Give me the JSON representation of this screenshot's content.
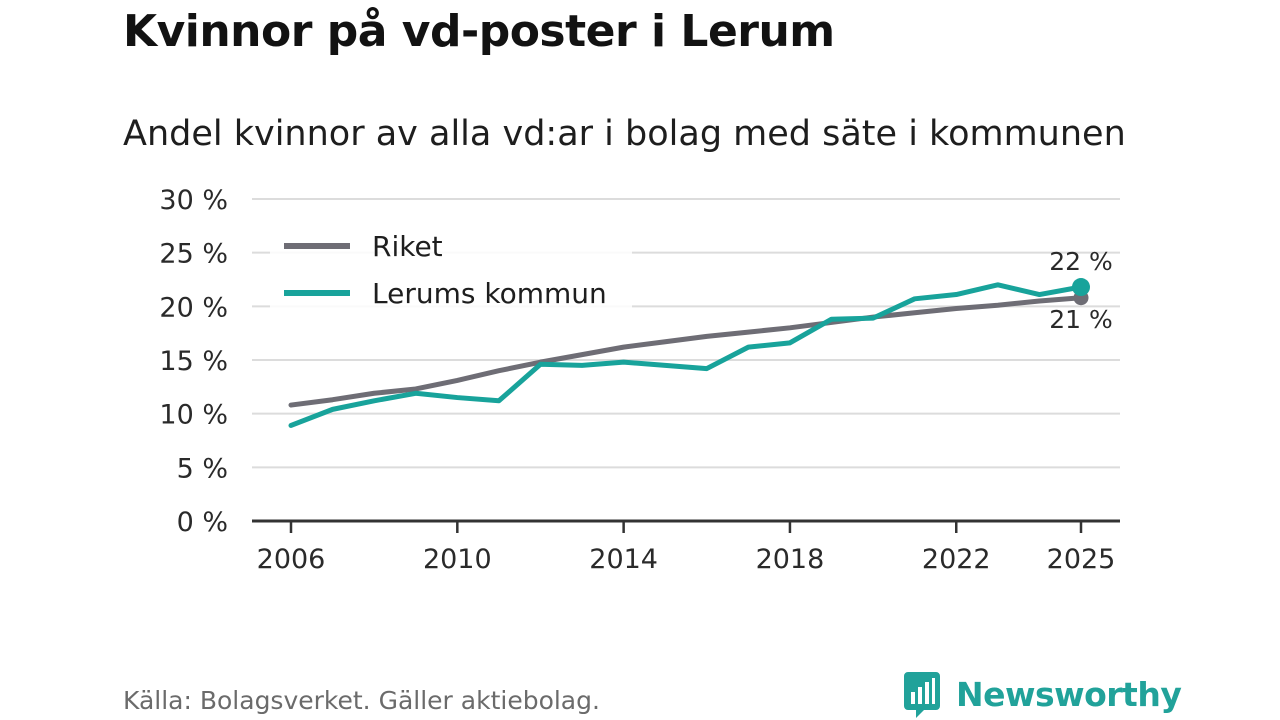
{
  "title": "Kvinnor på vd-poster i Lerum",
  "subtitle": "Andel kvinnor av alla vd:ar i bolag med säte i kommunen",
  "source": "Källa: Bolagsverket. Gäller aktiebolag.",
  "brand": "Newsworthy",
  "colors": {
    "riket": "#6e6d75",
    "lerum": "#18a39b",
    "grid": "#dcdcdc",
    "axis": "#333333",
    "text": "#2a2a2a"
  },
  "chart_data": {
    "type": "line",
    "title": "Kvinnor på vd-poster i Lerum",
    "subtitle": "Andel kvinnor av alla vd:ar i bolag med säte i kommunen",
    "xlabel": "",
    "ylabel": "",
    "x": [
      2006,
      2007,
      2008,
      2009,
      2010,
      2011,
      2012,
      2013,
      2014,
      2015,
      2016,
      2017,
      2018,
      2019,
      2020,
      2021,
      2022,
      2023,
      2024,
      2025
    ],
    "xlim": [
      2006,
      2025
    ],
    "x_ticks": [
      2006,
      2010,
      2014,
      2018,
      2022,
      2025
    ],
    "ylim": [
      0,
      30
    ],
    "y_ticks": [
      0,
      5,
      10,
      15,
      20,
      25,
      30
    ],
    "y_tick_labels": [
      "0 %",
      "5 %",
      "10 %",
      "15 %",
      "20 %",
      "25 %",
      "30 %"
    ],
    "grid": true,
    "legend": "top-left",
    "series": [
      {
        "name": "Riket",
        "values": [
          10.8,
          11.3,
          11.9,
          12.3,
          13.1,
          14.0,
          14.8,
          15.5,
          16.2,
          16.7,
          17.2,
          17.6,
          18.0,
          18.5,
          19.0,
          19.4,
          19.8,
          20.1,
          20.5,
          20.8
        ],
        "end_label": "21 %"
      },
      {
        "name": "Lerums kommun",
        "values": [
          8.9,
          10.4,
          11.2,
          11.9,
          11.5,
          11.2,
          14.6,
          14.5,
          14.8,
          14.5,
          14.2,
          16.2,
          16.6,
          18.8,
          18.9,
          20.7,
          21.1,
          22.0,
          21.1,
          21.8
        ],
        "end_label": "22 %"
      }
    ]
  }
}
